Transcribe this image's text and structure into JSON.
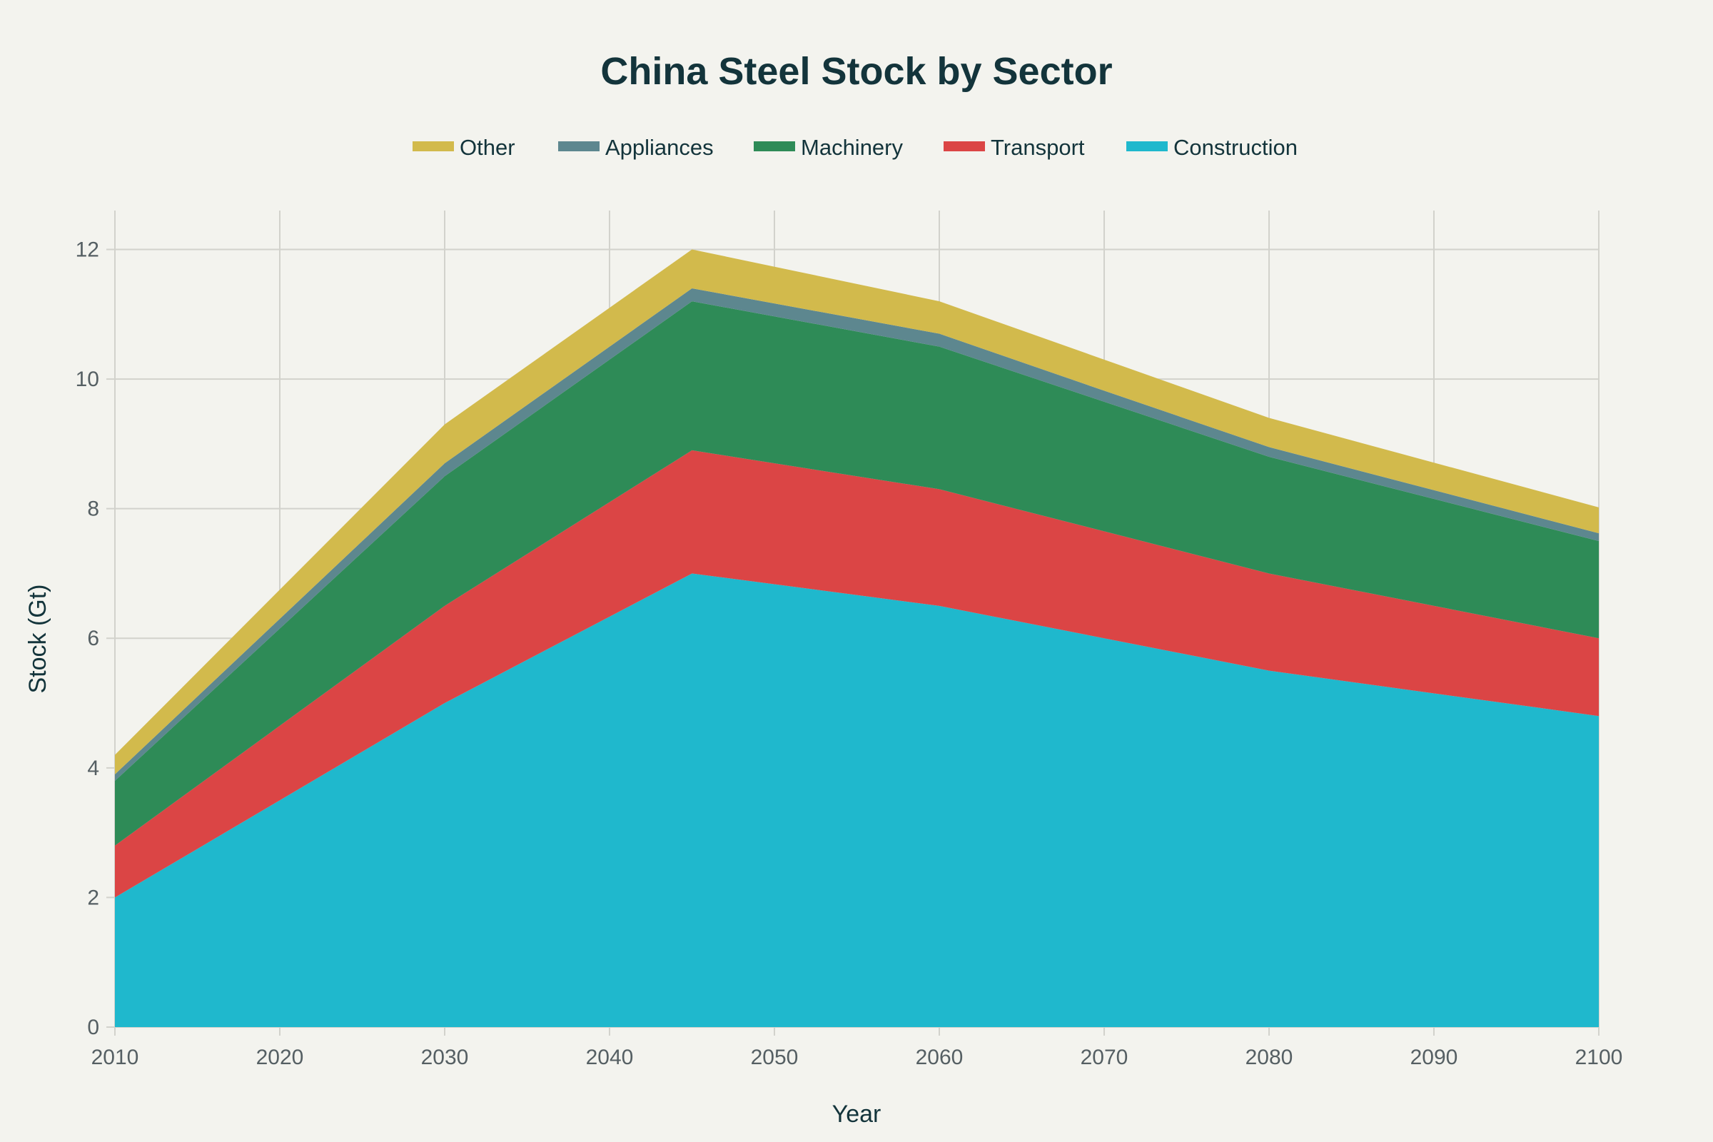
{
  "chart_data": {
    "type": "area",
    "stacked": true,
    "title": "China Steel Stock by Sector",
    "xlabel": "Year",
    "ylabel": "Stock (Gt)",
    "x": [
      2010,
      2020,
      2030,
      2045,
      2060,
      2070,
      2080,
      2100
    ],
    "xlim": [
      2010,
      2100
    ],
    "ylim": [
      0,
      12.6
    ],
    "xticks": [
      2010,
      2020,
      2030,
      2040,
      2050,
      2060,
      2070,
      2080,
      2090,
      2100
    ],
    "yticks": [
      0,
      2,
      4,
      6,
      8,
      10,
      12
    ],
    "grid": true,
    "legend_position": "top",
    "legend_order": [
      "Other",
      "Appliances",
      "Machinery",
      "Transport",
      "Construction"
    ],
    "series": [
      {
        "name": "Construction",
        "color": "#1fb8cd",
        "values": [
          2.0,
          3.5,
          5.0,
          7.0,
          6.5,
          6.0,
          5.5,
          4.8
        ]
      },
      {
        "name": "Transport",
        "color": "#db4545",
        "values": [
          0.8,
          1.15,
          1.5,
          1.9,
          1.8,
          1.65,
          1.5,
          1.2
        ]
      },
      {
        "name": "Machinery",
        "color": "#2e8b57",
        "values": [
          1.0,
          1.5,
          2.0,
          2.3,
          2.2,
          2.0,
          1.8,
          1.5
        ]
      },
      {
        "name": "Appliances",
        "color": "#5d878f",
        "values": [
          0.1,
          0.15,
          0.2,
          0.2,
          0.2,
          0.17,
          0.15,
          0.12
        ]
      },
      {
        "name": "Other",
        "color": "#d2ba4c",
        "values": [
          0.3,
          0.45,
          0.6,
          0.6,
          0.5,
          0.48,
          0.45,
          0.4
        ]
      }
    ]
  }
}
